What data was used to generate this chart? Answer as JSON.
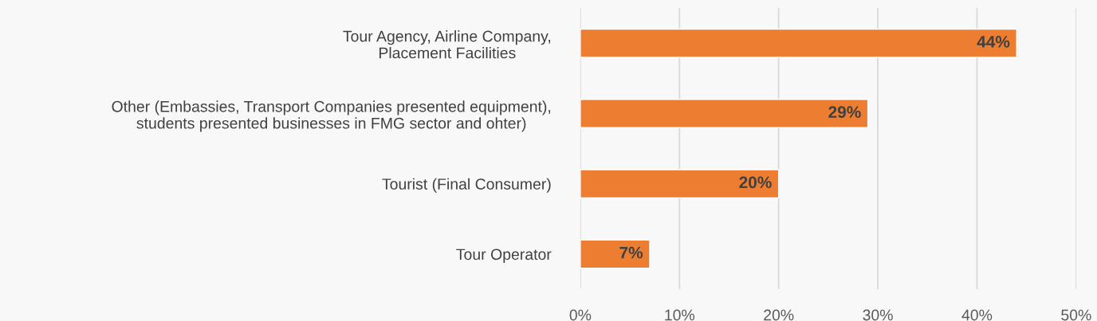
{
  "chart_data": {
    "type": "bar",
    "orientation": "horizontal",
    "categories": [
      "Tour Agency, Airline Company,\nPlacement Facilities",
      "Other (Embassies, Transport Companies presented equipment),\nstudents presented businesses in FMG sector and ohter)",
      "Tourist (Final Consumer)",
      "Tour Operator"
    ],
    "values": [
      44,
      29,
      20,
      7
    ],
    "color": "#ed7d31",
    "value_labels": [
      "44%",
      "29%",
      "20%",
      "7%"
    ],
    "xlim": [
      0,
      50
    ],
    "xticks": [
      {
        "value": 0,
        "label": "0%"
      },
      {
        "value": 10,
        "label": "10%"
      },
      {
        "value": 20,
        "label": "20%"
      },
      {
        "value": 30,
        "label": "30%"
      },
      {
        "value": 40,
        "label": "40%"
      },
      {
        "value": 50,
        "label": "50%"
      }
    ],
    "grid": "x"
  }
}
